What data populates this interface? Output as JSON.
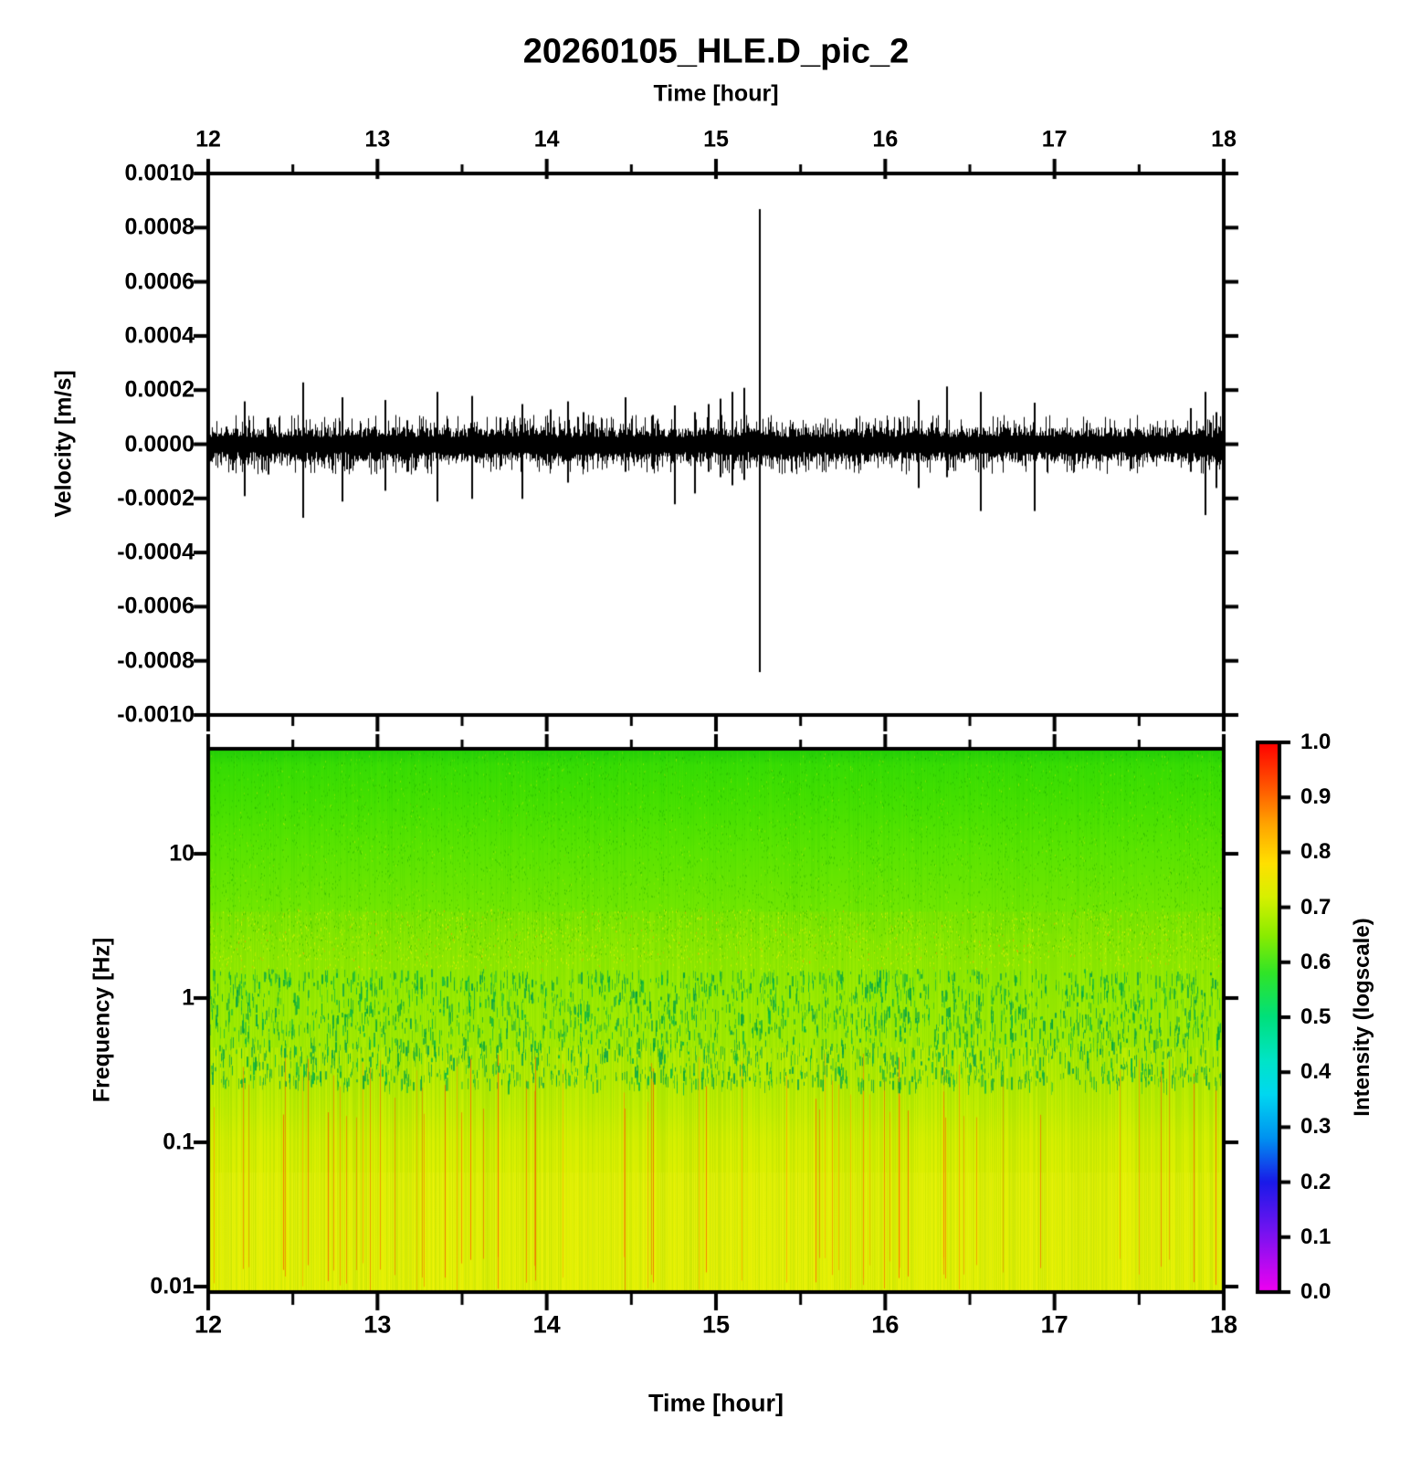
{
  "title": "20260105_HLE.D_pic_2",
  "top_axis": {
    "label": "Time [hour]",
    "tick_labels": [
      "12",
      "13",
      "14",
      "15",
      "16",
      "17",
      "18"
    ]
  },
  "bottom_axis": {
    "label": "Time [hour]",
    "tick_labels": [
      "12",
      "13",
      "14",
      "15",
      "16",
      "17",
      "18"
    ]
  },
  "wave_axis": {
    "label": "Velocity [m/s]",
    "tick_labels": [
      "0.0010",
      "0.0008",
      "0.0006",
      "0.0004",
      "0.0002",
      "0.0000",
      "-0.0002",
      "-0.0004",
      "-0.0006",
      "-0.0008",
      "-0.0010"
    ]
  },
  "freq_axis": {
    "label": "Frequency [Hz]",
    "tick_labels": [
      "10",
      "1",
      "0.1",
      "0.01"
    ]
  },
  "colorbar": {
    "label": "Intensity (logscale)",
    "tick_labels": [
      "1.0",
      "0.9",
      "0.8",
      "0.7",
      "0.6",
      "0.5",
      "0.4",
      "0.3",
      "0.2",
      "0.1",
      "0.0"
    ]
  },
  "chart_data": [
    {
      "type": "line",
      "title": "20260105_HLE.D_pic_2",
      "xlabel": "Time [hour]",
      "ylabel": "Velocity [m/s]",
      "xlim": [
        12,
        18
      ],
      "ylim": [
        -0.001,
        0.001
      ],
      "x_ticks": [
        12,
        13,
        14,
        15,
        16,
        17,
        18
      ],
      "x_minor_ticks": [
        12.5,
        13.5,
        14.5,
        15.5,
        16.5,
        17.5
      ],
      "y_ticks": [
        0.001,
        0.0008,
        0.0006,
        0.0004,
        0.0002,
        0.0,
        -0.0002,
        -0.0004,
        -0.0006,
        -0.0008,
        -0.001
      ],
      "line_color": "#000000",
      "noise_core_amplitude": 5e-05,
      "noise_whisker_amplitude": 0.00011,
      "spikes": [
        {
          "t": 12.21,
          "up": 0.00016,
          "down": -0.00019
        },
        {
          "t": 12.35,
          "up": 0.0001,
          "down": -0.00011
        },
        {
          "t": 12.555,
          "up": 0.00023,
          "down": -0.00027
        },
        {
          "t": 12.79,
          "up": 0.000175,
          "down": -0.00021
        },
        {
          "t": 13.04,
          "up": 0.000165,
          "down": -0.00017
        },
        {
          "t": 13.17,
          "up": 9e-05,
          "down": -0.0001
        },
        {
          "t": 13.35,
          "up": 0.000195,
          "down": -0.00021
        },
        {
          "t": 13.555,
          "up": 0.00018,
          "down": -0.0002
        },
        {
          "t": 13.72,
          "up": 0.0001,
          "down": -8e-05
        },
        {
          "t": 13.85,
          "up": 0.00015,
          "down": -0.0002
        },
        {
          "t": 14.02,
          "up": 0.00013,
          "down": -9e-05
        },
        {
          "t": 14.12,
          "up": 0.00016,
          "down": -0.00014
        },
        {
          "t": 14.21,
          "up": 0.00012,
          "down": -9e-05
        },
        {
          "t": 14.46,
          "up": 0.000175,
          "down": -0.0001
        },
        {
          "t": 14.62,
          "up": 0.00011,
          "down": -9e-05
        },
        {
          "t": 14.75,
          "up": 0.000145,
          "down": -0.00022
        },
        {
          "t": 14.87,
          "up": 0.00012,
          "down": -0.00018
        },
        {
          "t": 14.95,
          "up": 0.00015,
          "down": -0.0001
        },
        {
          "t": 15.02,
          "up": 0.00017,
          "down": -0.00012
        },
        {
          "t": 15.09,
          "up": 0.000195,
          "down": -0.00015
        },
        {
          "t": 15.16,
          "up": 0.00021,
          "down": -0.00013
        },
        {
          "t": 15.255,
          "up": 0.00087,
          "down": -0.00084
        },
        {
          "t": 16.19,
          "up": 0.000165,
          "down": -0.00016
        },
        {
          "t": 16.36,
          "up": 0.000215,
          "down": -0.00012
        },
        {
          "t": 16.56,
          "up": 0.000195,
          "down": -0.000245
        },
        {
          "t": 16.88,
          "up": 0.000155,
          "down": -0.000245
        },
        {
          "t": 17.8,
          "up": 0.000135,
          "down": -0.0001
        },
        {
          "t": 17.885,
          "up": 0.000195,
          "down": -0.00026
        },
        {
          "t": 17.95,
          "up": 0.00012,
          "down": -0.00016
        }
      ],
      "description": "Continuous seismic velocity trace: dense black noise band of ~±0.00005 m/s with impulsive bipolar spikes; largest event at ~15.25 h reaching +0.00087 / -0.00084 m/s"
    },
    {
      "type": "heatmap",
      "xlabel": "Time [hour]",
      "ylabel": "Frequency [Hz]",
      "xlim": [
        12,
        18
      ],
      "ylim": [
        0.01,
        55
      ],
      "yscale": "log",
      "y_ticks": [
        10,
        1,
        0.1,
        0.01
      ],
      "colorbar": {
        "label": "Intensity (logscale)",
        "range": [
          0.0,
          1.0
        ],
        "ticks": [
          1.0,
          0.9,
          0.8,
          0.7,
          0.6,
          0.5,
          0.4,
          0.3,
          0.2,
          0.1,
          0.0
        ],
        "colormap": "reversed gist_rainbow (magenta=0 to red=1)",
        "stops": [
          {
            "v": 1.0,
            "color": "#FF0000"
          },
          {
            "v": 0.92,
            "color": "#FF5500"
          },
          {
            "v": 0.85,
            "color": "#FFA500"
          },
          {
            "v": 0.78,
            "color": "#FFE000"
          },
          {
            "v": 0.72,
            "color": "#D8F000"
          },
          {
            "v": 0.65,
            "color": "#8CEC00"
          },
          {
            "v": 0.58,
            "color": "#30E428"
          },
          {
            "v": 0.5,
            "color": "#00E07C"
          },
          {
            "v": 0.42,
            "color": "#00E4C8"
          },
          {
            "v": 0.36,
            "color": "#00D8F0"
          },
          {
            "v": 0.28,
            "color": "#0092F0"
          },
          {
            "v": 0.2,
            "color": "#1A1AE8"
          },
          {
            "v": 0.12,
            "color": "#6A14F0"
          },
          {
            "v": 0.05,
            "color": "#B80AF0"
          },
          {
            "v": 0.0,
            "color": "#F000F0"
          }
        ]
      },
      "freq_intensity_profile": [
        {
          "frac": 0.0,
          "color": "#22CC08",
          "intensity": 0.61
        },
        {
          "frac": 0.03,
          "color": "#36DC04",
          "intensity": 0.62
        },
        {
          "frac": 0.1,
          "color": "#44E000",
          "intensity": 0.63
        },
        {
          "frac": 0.18,
          "color": "#58E400",
          "intensity": 0.645
        },
        {
          "frac": 0.28,
          "color": "#6EE600",
          "intensity": 0.66
        },
        {
          "frac": 0.38,
          "color": "#84E800",
          "intensity": 0.675
        },
        {
          "frac": 0.46,
          "color": "#92EA00",
          "intensity": 0.69
        },
        {
          "frac": 0.54,
          "color": "#9CEA00",
          "intensity": 0.7
        },
        {
          "frac": 0.6,
          "color": "#A6EA00",
          "intensity": 0.71
        },
        {
          "frac": 0.66,
          "color": "#B6EC00",
          "intensity": 0.72
        },
        {
          "frac": 0.72,
          "color": "#CCEE00",
          "intensity": 0.735
        },
        {
          "frac": 0.8,
          "color": "#D8EE00",
          "intensity": 0.745
        },
        {
          "frac": 1.0,
          "color": "#DDEF00",
          "intensity": 0.75
        }
      ],
      "texture_features": [
        "fine vertical time-striping over entire panel",
        "dark-green low-intensity dashes clustered between ~0.3 and ~1.5 Hz",
        "bright yellow strongly striped band below ~0.3 Hz",
        "sparse thin red/orange high-intensity vertical lines below ~0.3 Hz",
        "yellow speckle rows near 1.5-3 Hz",
        "green speckled texture above ~3 Hz"
      ]
    }
  ]
}
